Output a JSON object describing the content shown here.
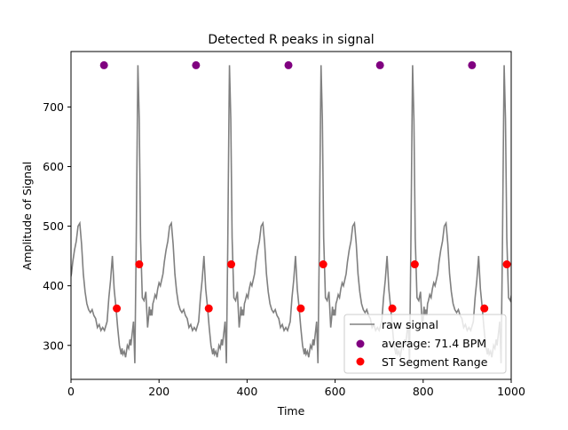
{
  "chart_data": {
    "type": "line",
    "title": "Detected R peaks in signal",
    "xlabel": "Time",
    "ylabel": "Amplitude of Signal",
    "xlim": [
      0,
      1000
    ],
    "ylim": [
      243,
      793
    ],
    "xticks": [
      0,
      200,
      400,
      600,
      800,
      1000
    ],
    "yticks": [
      300,
      400,
      500,
      600,
      700
    ],
    "grid": false,
    "legend_position": "bottom-right",
    "beat_template": {
      "x": [
        0,
        6,
        10,
        14,
        18,
        22,
        26,
        30,
        34,
        38,
        40,
        42,
        45,
        48,
        50,
        52,
        55,
        58,
        60,
        63,
        66,
        69,
        72,
        75,
        76,
        79,
        82,
        86,
        90,
        94,
        98,
        100,
        102,
        104,
        106,
        108,
        110,
        112,
        115,
        118,
        121,
        124,
        127,
        130,
        133,
        136,
        140,
        144,
        148,
        152,
        156,
        160,
        164,
        168,
        172,
        176,
        180,
        184,
        188,
        192,
        196,
        200,
        204,
        208
      ],
      "y": [
        325,
        340,
        380,
        410,
        450,
        395,
        365,
        330,
        300,
        285,
        295,
        285,
        290,
        280,
        290,
        300,
        295,
        310,
        300,
        320,
        340,
        270,
        460,
        700,
        770,
        680,
        480,
        380,
        375,
        390,
        330,
        345,
        365,
        350,
        360,
        350,
        370,
        375,
        385,
        380,
        395,
        405,
        400,
        410,
        420,
        440,
        460,
        475,
        500,
        505,
        470,
        420,
        390,
        370,
        360,
        355,
        360,
        350,
        345,
        330,
        335,
        325,
        330,
        325
      ]
    },
    "series": [
      {
        "name": "raw signal",
        "style": "line",
        "color": "#808080",
        "beats_start_x": [
          -132,
          76,
          284,
          492,
          700,
          908
        ]
      },
      {
        "name": "average: 71.4 BPM",
        "style": "scatter",
        "color": "#800080",
        "x": [
          75,
          284,
          494,
          702,
          911
        ],
        "y": [
          770,
          770,
          770,
          770,
          770
        ]
      },
      {
        "name": "ST Segment Range",
        "style": "scatter",
        "color": "#ff0000",
        "x": [
          104,
          155,
          313,
          364,
          522,
          573,
          730,
          781,
          939,
          990
        ],
        "y": [
          362,
          436,
          362,
          436,
          362,
          436,
          362,
          436,
          362,
          436
        ]
      }
    ]
  }
}
